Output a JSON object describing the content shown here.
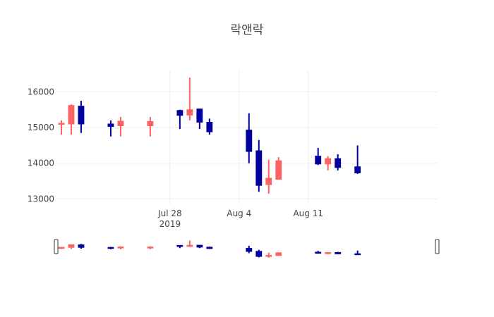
{
  "chart_data": {
    "type": "candlestick",
    "title": "락앤락",
    "xlabel": "",
    "ylabel": "",
    "ylim": [
      12850,
      16600
    ],
    "y_ticks": [
      13000,
      14000,
      15000,
      16000
    ],
    "y_tick_labels": [
      "13000",
      "14000",
      "15000",
      "16000"
    ],
    "x_range": [
      "2019-07-17",
      "2019-08-24"
    ],
    "x_ticks": [
      {
        "date": "2019-07-28",
        "label": "Jul 28",
        "sublabel": "2019"
      },
      {
        "date": "2019-08-04",
        "label": "Aug 4",
        "sublabel": ""
      },
      {
        "date": "2019-08-11",
        "label": "Aug 11",
        "sublabel": ""
      }
    ],
    "increasing_color": "#FF6361",
    "decreasing_color": "#0000A0",
    "grid": true,
    "rangeslider": true,
    "candles": [
      {
        "date": "2019-07-17",
        "open": 15100,
        "high": 15200,
        "low": 14800,
        "close": 15120
      },
      {
        "date": "2019-07-18",
        "open": 15100,
        "high": 15650,
        "low": 14800,
        "close": 15620
      },
      {
        "date": "2019-07-19",
        "open": 15600,
        "high": 15750,
        "low": 14850,
        "close": 15100
      },
      {
        "date": "2019-07-22",
        "open": 15100,
        "high": 15200,
        "low": 14750,
        "close": 15030
      },
      {
        "date": "2019-07-23",
        "open": 15050,
        "high": 15300,
        "low": 14750,
        "close": 15180
      },
      {
        "date": "2019-07-26",
        "open": 15050,
        "high": 15300,
        "low": 14750,
        "close": 15170
      },
      {
        "date": "2019-07-29",
        "open": 15480,
        "high": 15500,
        "low": 14960,
        "close": 15340
      },
      {
        "date": "2019-07-30",
        "open": 15350,
        "high": 16400,
        "low": 15200,
        "close": 15500
      },
      {
        "date": "2019-07-31",
        "open": 15520,
        "high": 15520,
        "low": 14960,
        "close": 15150
      },
      {
        "date": "2019-08-01",
        "open": 15150,
        "high": 15250,
        "low": 14800,
        "close": 14880
      },
      {
        "date": "2019-08-05",
        "open": 14930,
        "high": 15400,
        "low": 14000,
        "close": 14330
      },
      {
        "date": "2019-08-06",
        "open": 14350,
        "high": 14650,
        "low": 13200,
        "close": 13380
      },
      {
        "date": "2019-08-07",
        "open": 13400,
        "high": 14100,
        "low": 13150,
        "close": 13580
      },
      {
        "date": "2019-08-08",
        "open": 13550,
        "high": 14170,
        "low": 13550,
        "close": 14070
      },
      {
        "date": "2019-08-12",
        "open": 14200,
        "high": 14430,
        "low": 13950,
        "close": 13980
      },
      {
        "date": "2019-08-13",
        "open": 13980,
        "high": 14200,
        "low": 13800,
        "close": 14130
      },
      {
        "date": "2019-08-14",
        "open": 14130,
        "high": 14250,
        "low": 13800,
        "close": 13880
      },
      {
        "date": "2019-08-16",
        "open": 13900,
        "high": 14500,
        "low": 13700,
        "close": 13730
      }
    ]
  }
}
